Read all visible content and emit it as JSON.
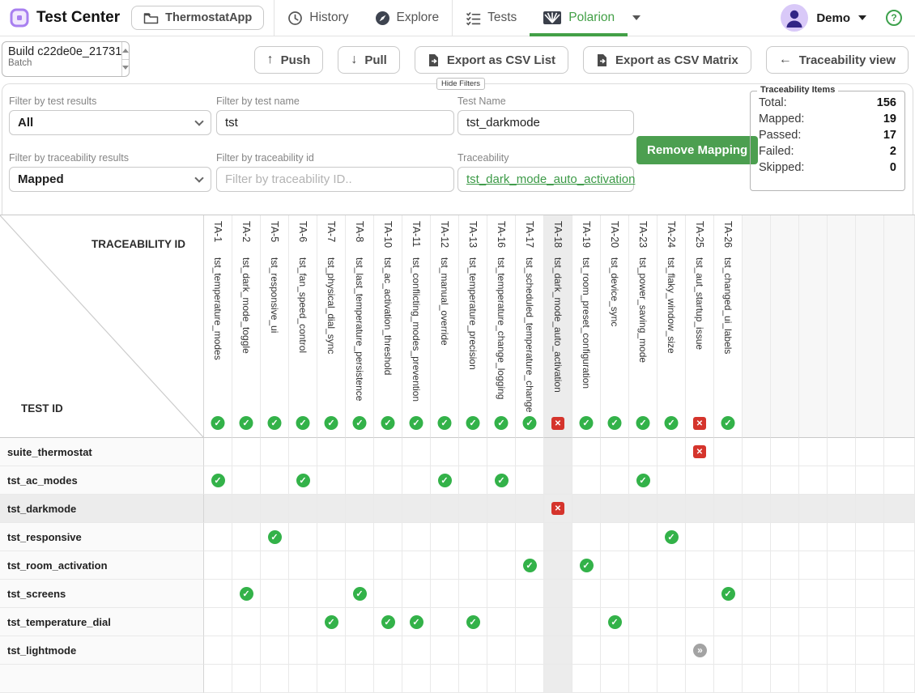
{
  "navbar": {
    "app_title": "Test Center",
    "project_button": "ThermostatApp",
    "items": {
      "history": "History",
      "explore": "Explore",
      "tests": "Tests",
      "polarion": "Polarion"
    },
    "user": "Demo",
    "help": "?"
  },
  "toolbar": {
    "build_line1": "Build c22de0e_21731",
    "build_line2": "Batch",
    "push": "Push",
    "pull": "Pull",
    "export_list": "Export as CSV List",
    "export_matrix": "Export as CSV Matrix",
    "traceability_view": "Traceability view",
    "hide_filters": "Hide Filters"
  },
  "filters": {
    "test_results": {
      "label": "Filter by test results",
      "value": "All"
    },
    "test_name_filter": {
      "label": "Filter by test name",
      "value": "tst"
    },
    "test_name": {
      "label": "Test Name",
      "value": "tst_darkmode"
    },
    "traceability_results": {
      "label": "Filter by traceability results",
      "value": "Mapped"
    },
    "traceability_id_filter": {
      "label": "Filter by traceability id",
      "placeholder": "Filter by traceability ID.."
    },
    "traceability": {
      "label": "Traceability",
      "value": "tst_dark_mode_auto_activation"
    },
    "remove_mapping": "Remove Mapping"
  },
  "stats": {
    "title": "Traceability Items",
    "rows": [
      {
        "label": "Total:",
        "value": "156"
      },
      {
        "label": "Mapped:",
        "value": "19"
      },
      {
        "label": "Passed:",
        "value": "17"
      },
      {
        "label": "Failed:",
        "value": "2"
      },
      {
        "label": "Skipped:",
        "value": "0"
      }
    ]
  },
  "colors": {
    "accent_green": "#43a047",
    "button_green": "#4c9f50",
    "pass_green": "#33b249",
    "fail_red": "#d5342c",
    "skip_gray": "#a3a3a3",
    "avatar_purple": "#d9c9f8",
    "logo_purple": "#a87ff0"
  },
  "matrix": {
    "corner": {
      "top": "TRACEABILITY ID",
      "bottom": "TEST ID"
    },
    "empty_columns": 6,
    "columns": [
      {
        "id": "TA-1",
        "name": "tst_temperature_modes",
        "status": "pass"
      },
      {
        "id": "TA-2",
        "name": "tst_dark_mode_toggle",
        "status": "pass"
      },
      {
        "id": "TA-5",
        "name": "tst_responsive_ui",
        "status": "pass"
      },
      {
        "id": "TA-6",
        "name": "tst_fan_speed_control",
        "status": "pass"
      },
      {
        "id": "TA-7",
        "name": "tst_physical_dial_sync",
        "status": "pass"
      },
      {
        "id": "TA-8",
        "name": "tst_last_temperature_persistence",
        "status": "pass"
      },
      {
        "id": "TA-10",
        "name": "tst_ac_activation_threshold",
        "status": "pass"
      },
      {
        "id": "TA-11",
        "name": "tst_conflicting_modes_prevention",
        "status": "pass"
      },
      {
        "id": "TA-12",
        "name": "tst_manual_override",
        "status": "pass"
      },
      {
        "id": "TA-13",
        "name": "tst_temperature_precision",
        "status": "pass"
      },
      {
        "id": "TA-16",
        "name": "tst_temperature_change_logging",
        "status": "pass"
      },
      {
        "id": "TA-17",
        "name": "tst_scheduled_temperature_change",
        "status": "pass"
      },
      {
        "id": "TA-18",
        "name": "tst_dark_mode_auto_activation",
        "status": "fail",
        "highlight": true
      },
      {
        "id": "TA-19",
        "name": "tst_room_preset_configuration",
        "status": "pass"
      },
      {
        "id": "TA-20",
        "name": "tst_device_sync",
        "status": "pass"
      },
      {
        "id": "TA-23",
        "name": "tst_power_saving_mode",
        "status": "pass"
      },
      {
        "id": "TA-24",
        "name": "tst_flaky_window_size",
        "status": "pass"
      },
      {
        "id": "TA-25",
        "name": "tst_aut_startup_issue",
        "status": "fail"
      },
      {
        "id": "TA-26",
        "name": "tst_changed_ui_labels",
        "status": "pass"
      }
    ],
    "rows": [
      {
        "label": "suite_thermostat",
        "cells": {
          "TA-25": "fail"
        }
      },
      {
        "label": "tst_ac_modes",
        "cells": {
          "TA-1": "pass",
          "TA-6": "pass",
          "TA-12": "pass",
          "TA-16": "pass",
          "TA-23": "pass"
        }
      },
      {
        "label": "tst_darkmode",
        "highlight": true,
        "cells": {
          "TA-18": "fail"
        }
      },
      {
        "label": "tst_responsive",
        "cells": {
          "TA-5": "pass",
          "TA-24": "pass"
        }
      },
      {
        "label": "tst_room_activation",
        "cells": {
          "TA-17": "pass",
          "TA-19": "pass"
        }
      },
      {
        "label": "tst_screens",
        "cells": {
          "TA-2": "pass",
          "TA-8": "pass",
          "TA-26": "pass"
        }
      },
      {
        "label": "tst_temperature_dial",
        "cells": {
          "TA-7": "pass",
          "TA-10": "pass",
          "TA-11": "pass",
          "TA-13": "pass",
          "TA-20": "pass"
        }
      },
      {
        "label": "tst_lightmode",
        "cells": {
          "TA-25": "skip"
        }
      },
      {
        "label": "",
        "cells": {}
      }
    ]
  }
}
